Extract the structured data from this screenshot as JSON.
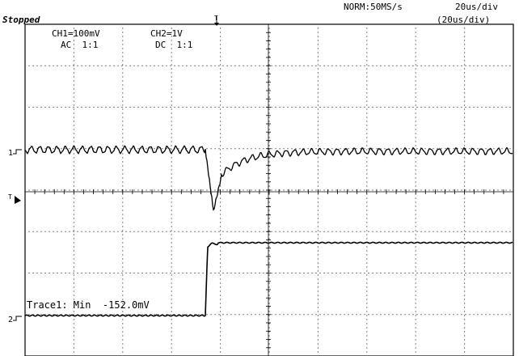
{
  "status": "Stopped",
  "acquisition": {
    "mode": "NORM:50MS/s",
    "time_div": "20us/div",
    "time_div_sub": "(20us/div)"
  },
  "channels": {
    "ch1": {
      "scale": "CH1=100mV",
      "coupling": "AC  1:1",
      "marker": "1"
    },
    "ch2": {
      "scale": "CH2=1V",
      "coupling": "DC  1:1",
      "marker": "2"
    }
  },
  "trigger": {
    "top_marker": "T",
    "level_marker": "T"
  },
  "readout": {
    "trace": "Trace1: Min  -152.0mV"
  }
}
